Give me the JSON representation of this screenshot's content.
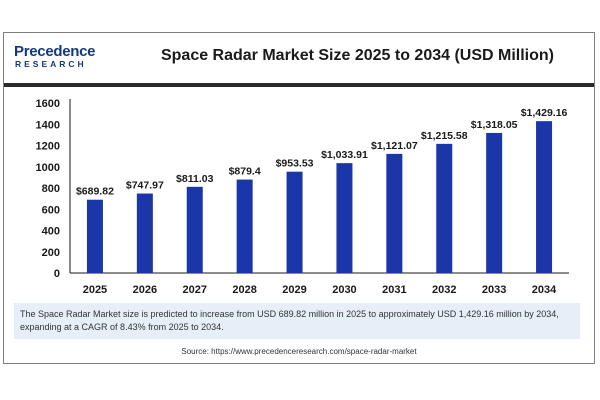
{
  "logo": {
    "top": "Precedence",
    "bottom": "RESEARCH"
  },
  "header": {
    "title": "Space Radar Market Size 2025 to 2034 (USD Million)"
  },
  "chart_data": {
    "type": "bar",
    "title": "Space Radar Market Size 2025 to 2034 (USD Million)",
    "categories": [
      "2025",
      "2026",
      "2027",
      "2028",
      "2029",
      "2030",
      "2031",
      "2032",
      "2033",
      "2034"
    ],
    "values": [
      689.82,
      747.97,
      811.03,
      879.4,
      953.53,
      1033.91,
      1121.07,
      1215.58,
      1318.05,
      1429.16
    ],
    "data_labels": [
      "$689.82",
      "$747.97",
      "$811.03",
      "$879.4",
      "$953.53",
      "$1,033.91",
      "$1,121.07",
      "$1,215.58",
      "$1,318.05",
      "$1,429.16"
    ],
    "yticks": [
      0,
      200,
      400,
      600,
      800,
      1000,
      1200,
      1400,
      1600
    ],
    "ylim": [
      0,
      1600
    ],
    "xlabel": "",
    "ylabel": "",
    "grid": false,
    "bar_color": "#1b36a8"
  },
  "note": "The Space Radar Market size is predicted to increase from USD 689.82 million in 2025 to approximately USD 1,429.16 million by 2034, expanding at a CAGR of 8.43% from 2025 to 2034.",
  "source": "Source: https://www.precedenceresearch.com/space-radar-market"
}
